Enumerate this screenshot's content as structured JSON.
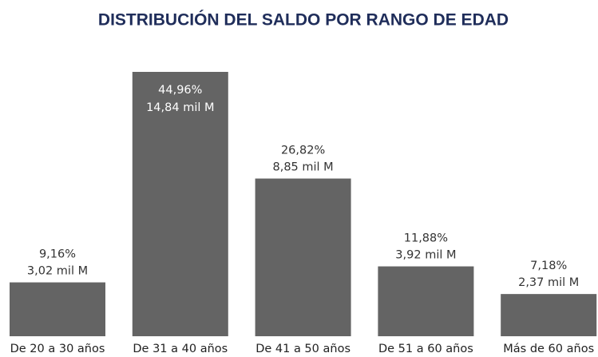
{
  "chart_data": {
    "type": "bar",
    "title": "DISTRIBUCIÓN DEL SALDO POR RANGO DE EDAD",
    "categories": [
      "De 20 a 30 años",
      "De 31 a 40 años",
      "De 41 a 50 años",
      "De 51 a 60 años",
      "Más de 60 años"
    ],
    "values": [
      9.16,
      44.96,
      26.82,
      11.88,
      7.18
    ],
    "value_labels": [
      "9,16%",
      "44,96%",
      "26,82%",
      "11,88%",
      "7,18%"
    ],
    "amounts": [
      3.02,
      14.84,
      8.85,
      3.92,
      2.37
    ],
    "amount_labels": [
      "3,02 mil M",
      "14,84 mil M",
      "8,85 mil M",
      "3,92 mil M",
      "2,37 mil M"
    ],
    "color": "#646464"
  }
}
